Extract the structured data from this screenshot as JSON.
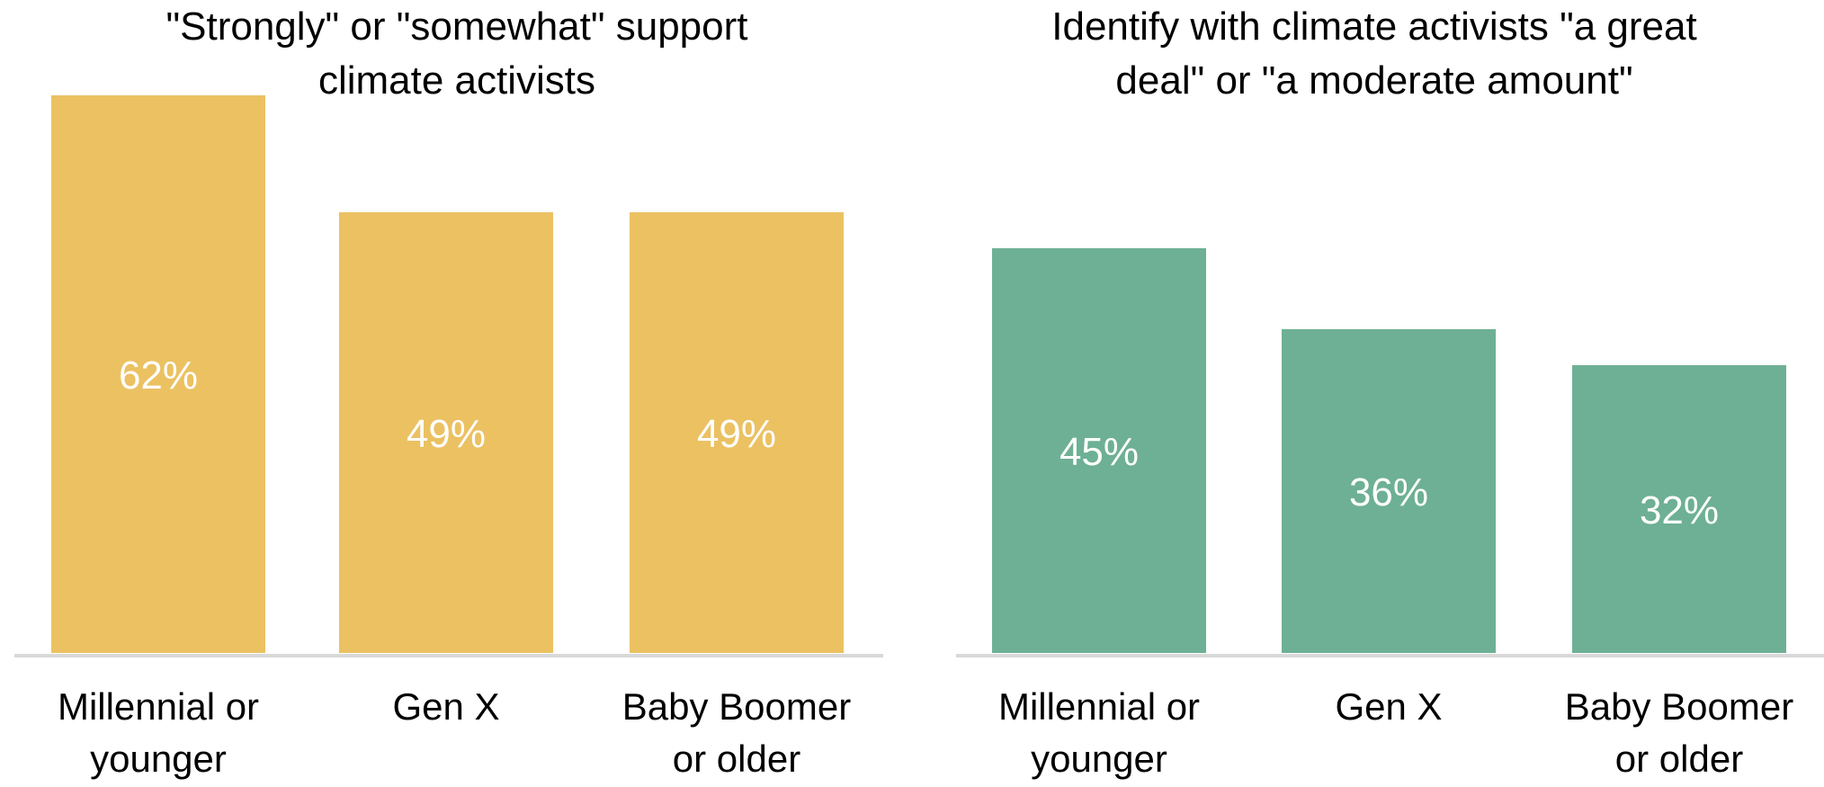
{
  "chart_data": [
    {
      "type": "bar",
      "title": "\"Strongly\" or \"somewhat\" support climate activists",
      "title_lines": [
        "\"Strongly\" or \"somewhat\" support",
        "climate activists"
      ],
      "categories": [
        "Millennial or younger",
        "Gen X",
        "Baby Boomer or older"
      ],
      "category_lines": [
        [
          "Millennial or",
          "younger"
        ],
        [
          "Gen X"
        ],
        [
          "Baby Boomer",
          "or older"
        ]
      ],
      "values": [
        62,
        49,
        49
      ],
      "value_labels": [
        "62%",
        "49%",
        "49%"
      ],
      "ylim": [
        0,
        100
      ],
      "color": "#EBC162",
      "label_color": "#ffffff",
      "xlabel": "",
      "ylabel": "",
      "grid": false,
      "legend": "none"
    },
    {
      "type": "bar",
      "title": "Identify with climate activists \"a great deal\" or \"a moderate amount\"",
      "title_lines": [
        "Identify with climate activists \"a great",
        "deal\" or \"a moderate amount\""
      ],
      "categories": [
        "Millennial or younger",
        "Gen X",
        "Baby Boomer or older"
      ],
      "category_lines": [
        [
          "Millennial or",
          "younger"
        ],
        [
          "Gen X"
        ],
        [
          "Baby Boomer",
          "or older"
        ]
      ],
      "values": [
        45,
        36,
        32
      ],
      "value_labels": [
        "45%",
        "36%",
        "32%"
      ],
      "ylim": [
        0,
        100
      ],
      "color": "#6EB095",
      "label_color": "#ffffff",
      "xlabel": "",
      "ylabel": "",
      "grid": false,
      "legend": "none"
    }
  ],
  "colors": {
    "baseline": "#d9d9d9",
    "text": "#000000"
  }
}
